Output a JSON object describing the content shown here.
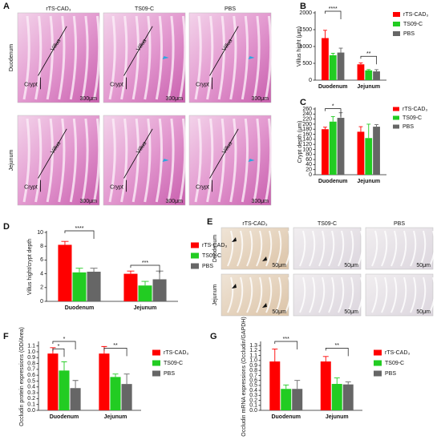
{
  "image_panels": [
    {
      "panel": "A",
      "columns": [
        "rTS-CAD₃",
        "TS09-C",
        "PBS"
      ],
      "rows": [
        "Duodenum",
        "Jejunum"
      ],
      "villus": "Villus",
      "crypt": "Crypt",
      "scale": "300μm"
    },
    {
      "panel": "E",
      "columns": [
        "rTS-CAD₃",
        "TS09-C",
        "PBS"
      ],
      "rows": [
        "Duodenum",
        "Jejunum"
      ],
      "scale": "50μm"
    }
  ],
  "chart_data": [
    {
      "type": "bar",
      "panel": "B",
      "y_label": "Villus hight (μm)",
      "categories": [
        "Duodenum",
        "Jejunum"
      ],
      "series": [
        {
          "name": "rTS-CAD₃",
          "color": "#ff0000",
          "values": [
            1250,
            470
          ],
          "errors": [
            230,
            40
          ]
        },
        {
          "name": "TS09-C",
          "color": "#22cc22",
          "values": [
            740,
            290
          ],
          "errors": [
            60,
            25
          ]
        },
        {
          "name": "PBS",
          "color": "#666666",
          "values": [
            820,
            260
          ],
          "errors": [
            130,
            50
          ]
        }
      ],
      "ylim": [
        0,
        2000
      ],
      "yticks": [
        0,
        500,
        1000,
        1500,
        2000
      ],
      "significance": [
        "****",
        "**"
      ]
    },
    {
      "type": "bar",
      "panel": "C",
      "y_label": "Crypt depth (μm)",
      "categories": [
        "Duodenum",
        "Jejunum"
      ],
      "series": [
        {
          "name": "rTS-CAD₃",
          "color": "#ff0000",
          "values": [
            180,
            170
          ],
          "errors": [
            8,
            20
          ]
        },
        {
          "name": "TS09-C",
          "color": "#22cc22",
          "values": [
            210,
            145
          ],
          "errors": [
            20,
            55
          ]
        },
        {
          "name": "PBS",
          "color": "#666666",
          "values": [
            225,
            190
          ],
          "errors": [
            20,
            8
          ]
        }
      ],
      "ylim": [
        0,
        260
      ],
      "yticks": [
        0,
        20,
        40,
        60,
        80,
        100,
        120,
        140,
        160,
        180,
        200,
        220,
        240,
        260
      ],
      "significance": [
        "*"
      ]
    },
    {
      "type": "bar",
      "panel": "D",
      "y_label": "Villus hight/crypt depth",
      "categories": [
        "Duodenum",
        "Jejunum"
      ],
      "series": [
        {
          "name": "rTS-CAD₃",
          "color": "#ff0000",
          "values": [
            8.2,
            4.0
          ],
          "errors": [
            0.5,
            0.4
          ]
        },
        {
          "name": "TS09-C",
          "color": "#22cc22",
          "values": [
            4.2,
            2.3
          ],
          "errors": [
            0.6,
            0.6
          ]
        },
        {
          "name": "PBS",
          "color": "#666666",
          "values": [
            4.3,
            3.2
          ],
          "errors": [
            0.5,
            1.2
          ]
        }
      ],
      "ylim": [
        0,
        10
      ],
      "yticks": [
        0,
        2,
        4,
        6,
        8,
        10
      ],
      "significance": [
        "****",
        "***"
      ]
    },
    {
      "type": "bar",
      "panel": "F",
      "y_label": "Occludin protein expressions (OD/Area)",
      "categories": [
        "Duodenum",
        "Jejunum"
      ],
      "series": [
        {
          "name": "rTS-CAD₃",
          "color": "#ff0000",
          "values": [
            0.97,
            0.97
          ],
          "errors": [
            0.1,
            0.12
          ]
        },
        {
          "name": "TS09-C",
          "color": "#22cc22",
          "values": [
            0.68,
            0.57
          ],
          "errors": [
            0.15,
            0.05
          ]
        },
        {
          "name": "PBS",
          "color": "#666666",
          "values": [
            0.38,
            0.45
          ],
          "errors": [
            0.13,
            0.17
          ]
        }
      ],
      "ylim": [
        0,
        1.15
      ],
      "yticks": [
        {
          "value": 0,
          "label": "0.0"
        },
        0.1,
        0.2,
        0.3,
        0.4,
        0.5,
        0.6,
        0.7,
        0.8,
        0.9,
        {
          "value": 1,
          "label": "1.0"
        },
        1.1
      ],
      "significance": [
        "*",
        "*",
        "**"
      ]
    },
    {
      "type": "bar",
      "panel": "G",
      "y_label": "Occludin mRNA expressions (Occludin/GAPDH)",
      "categories": [
        "Duodenum",
        "Jejunum"
      ],
      "series": [
        {
          "name": "rTS-CAD₃",
          "color": "#ff0000",
          "values": [
            0.98,
            0.98
          ],
          "errors": [
            0.25,
            0.1
          ]
        },
        {
          "name": "TS09-C",
          "color": "#22cc22",
          "values": [
            0.43,
            0.53
          ],
          "errors": [
            0.08,
            0.12
          ]
        },
        {
          "name": "PBS",
          "color": "#666666",
          "values": [
            0.43,
            0.52
          ],
          "errors": [
            0.17,
            0.05
          ]
        }
      ],
      "ylim": [
        0,
        1.35
      ],
      "yticks": [
        {
          "value": 0,
          "label": "0.0"
        },
        0.1,
        0.2,
        0.3,
        0.4,
        0.5,
        0.6,
        0.7,
        0.8,
        0.9,
        {
          "value": 1,
          "label": "1.0"
        },
        1.1,
        1.2,
        1.3
      ],
      "significance": [
        "***",
        "**"
      ]
    }
  ]
}
